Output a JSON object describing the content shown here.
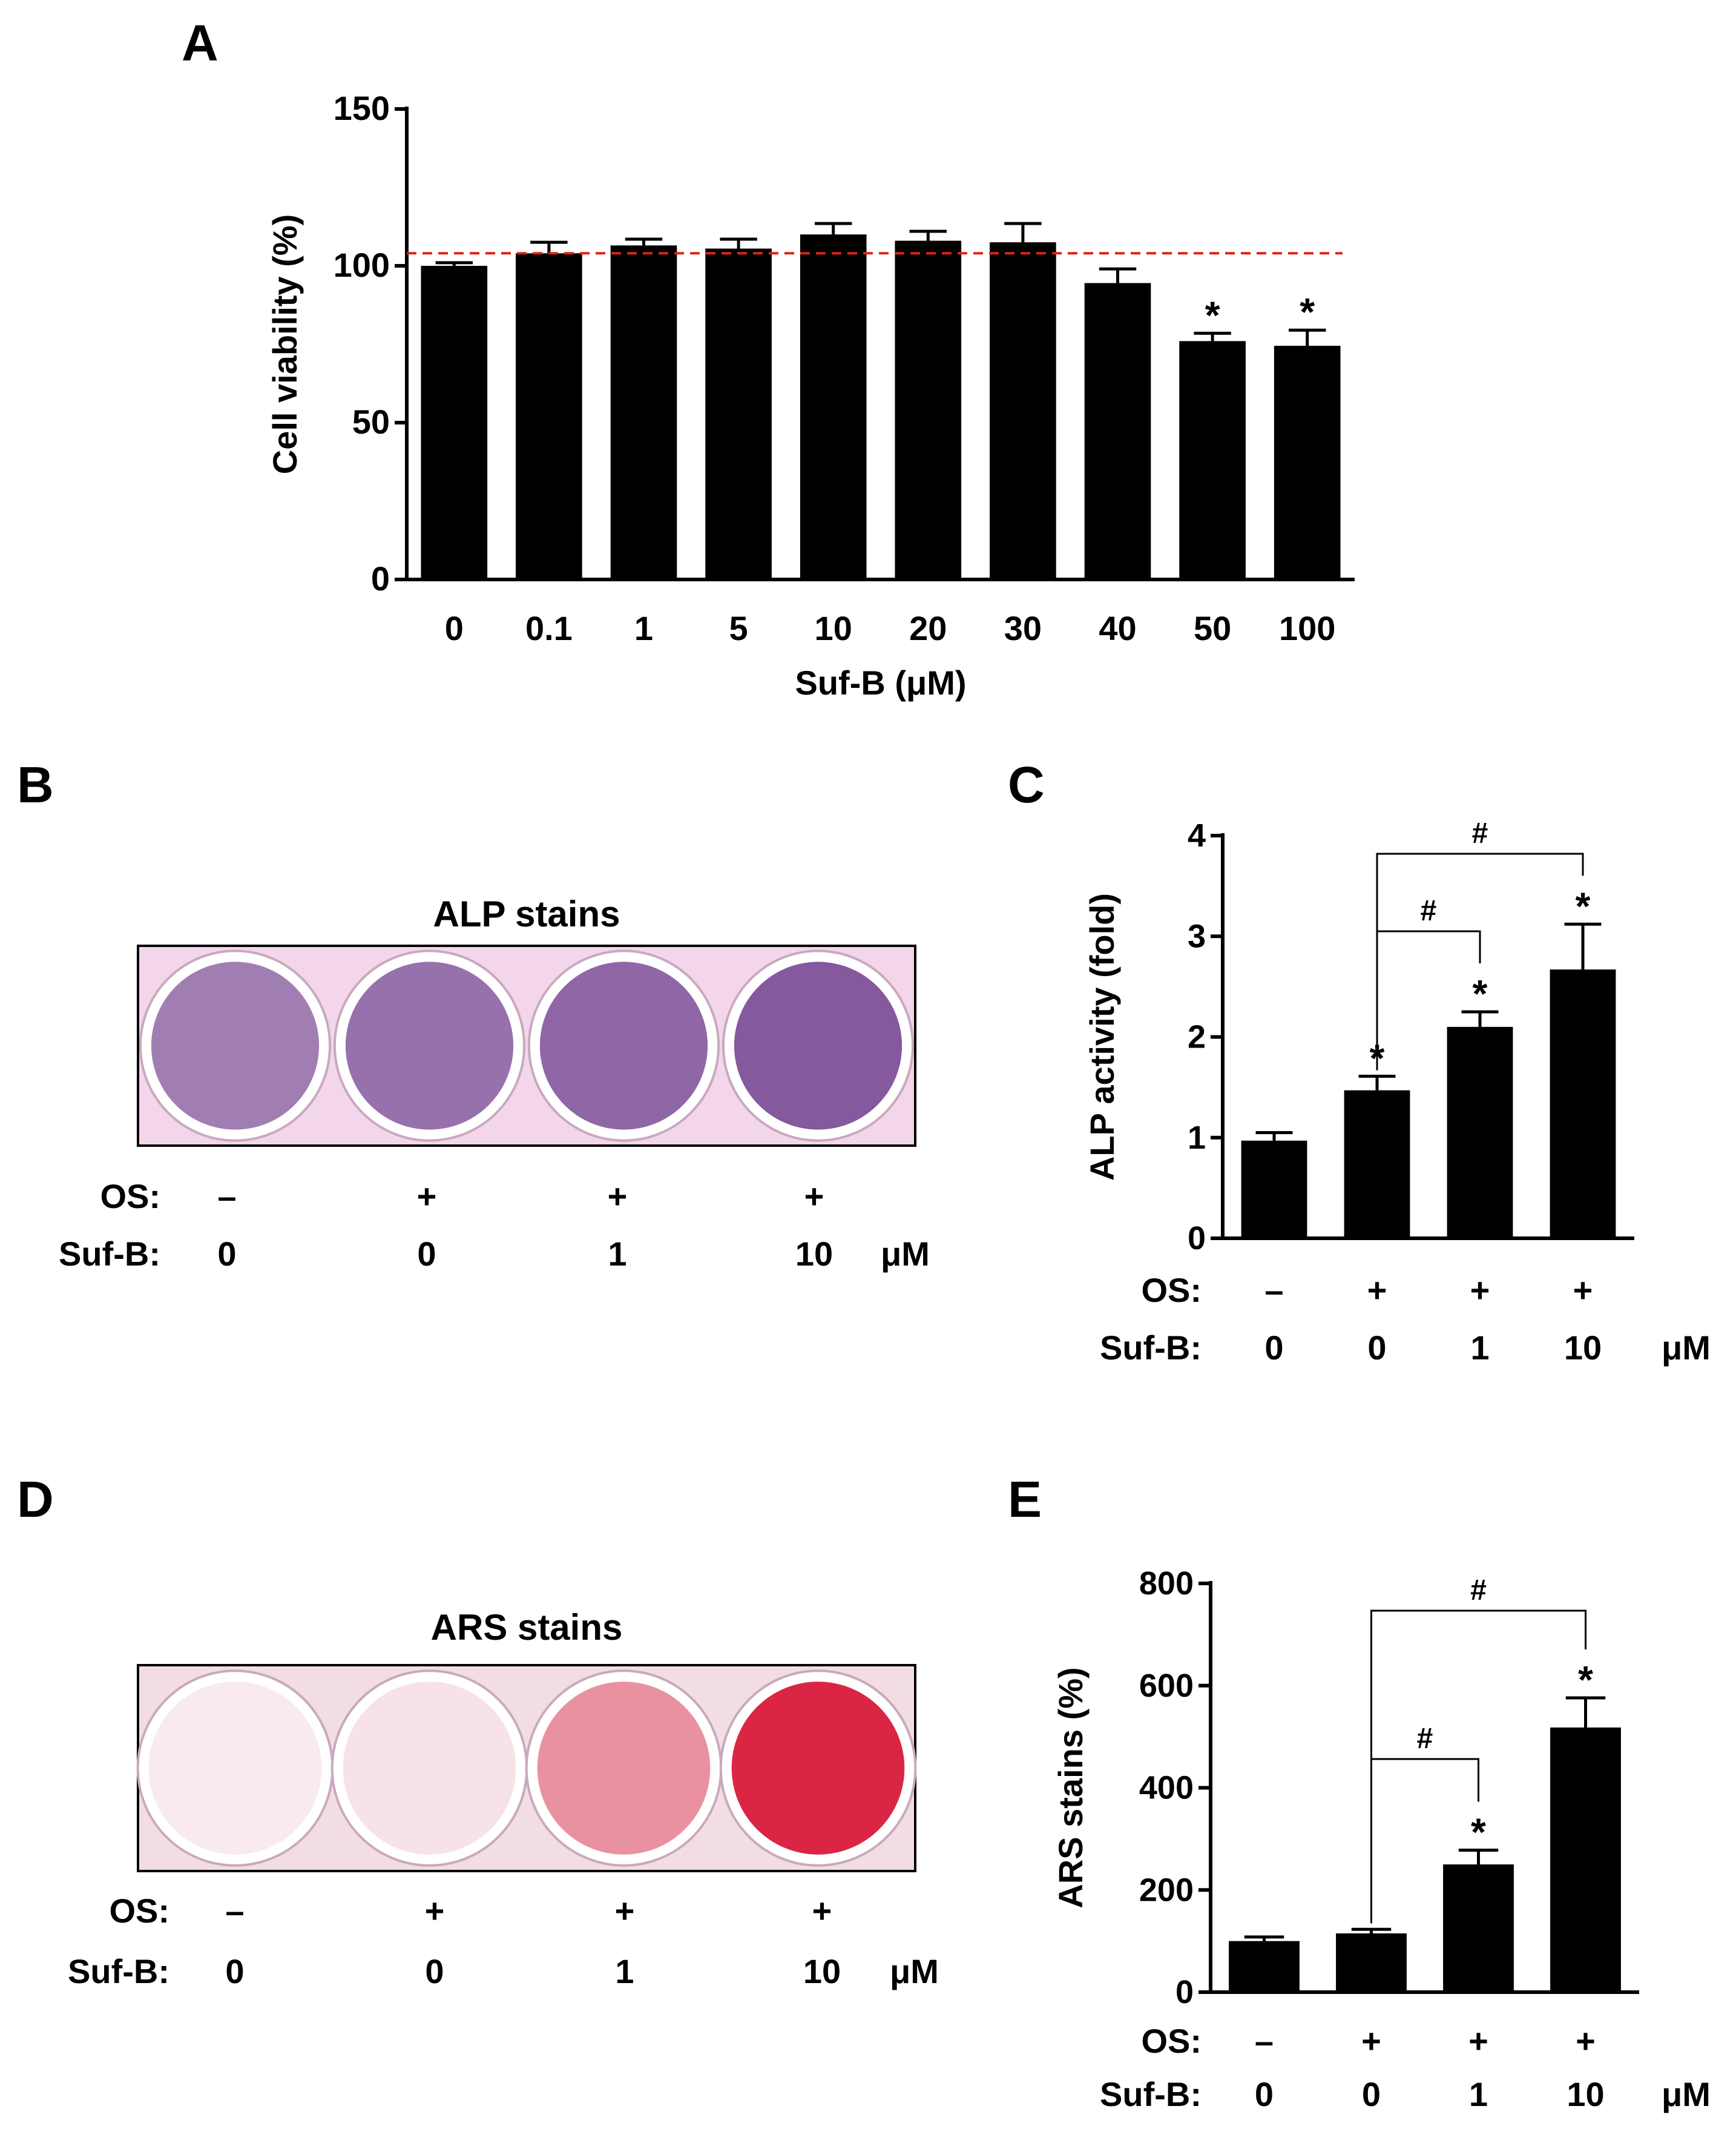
{
  "panels": {
    "a": {
      "letter": "A"
    },
    "b": {
      "letter": "B",
      "title": "ALP stains"
    },
    "c": {
      "letter": "C"
    },
    "d": {
      "letter": "D",
      "title": "ARS stains"
    },
    "e": {
      "letter": "E"
    }
  },
  "treatment_table": {
    "os_label": "OS:",
    "sufb_label": "Suf-B:",
    "os_values": [
      "–",
      "+",
      "+",
      "+"
    ],
    "sufb_values": [
      "0",
      "0",
      "1",
      "10"
    ],
    "unit": "μM"
  },
  "significance": {
    "star": "*",
    "hash": "#"
  },
  "colors": {
    "bar": "#000000",
    "reference_line": "#e0201c",
    "alp_stain": "#7a4c96",
    "ars_stain": "#d81a3a",
    "plate_background": "#f4d6ea",
    "ars_plate_background": "#f2dde4"
  },
  "stain_intensity": {
    "alp": [
      0.7,
      0.78,
      0.84,
      0.92
    ],
    "ars": [
      0.04,
      0.08,
      0.45,
      0.95
    ]
  },
  "chart_data": [
    {
      "panel": "A",
      "type": "bar",
      "categories": [
        "0",
        "0.1",
        "1",
        "5",
        "10",
        "20",
        "30",
        "40",
        "50",
        "100"
      ],
      "values": [
        100,
        104,
        106.5,
        105.5,
        110,
        108,
        107.5,
        94.5,
        76,
        74.5
      ],
      "errors": [
        1,
        3.5,
        2,
        3,
        3.5,
        3,
        6,
        4.5,
        2.5,
        5
      ],
      "significant": [
        false,
        false,
        false,
        false,
        false,
        false,
        false,
        false,
        true,
        true
      ],
      "reference_line": 104,
      "xlabel": "Suf-B (μM)",
      "ylabel": "Cell viability (%)",
      "ylim": [
        0,
        150
      ],
      "yticks": [
        "0",
        "50",
        "100",
        "150"
      ]
    },
    {
      "panel": "C",
      "type": "bar",
      "categories": [
        "1",
        "2",
        "3",
        "4"
      ],
      "values": [
        0.97,
        1.47,
        2.1,
        2.67
      ],
      "errors": [
        0.08,
        0.14,
        0.15,
        0.45
      ],
      "significant": [
        false,
        true,
        true,
        true
      ],
      "comparisons": [
        [
          1,
          2
        ],
        [
          1,
          3
        ]
      ],
      "ylabel": "ALP activity (fold)",
      "ylim": [
        0,
        4
      ],
      "yticks": [
        "0",
        "1",
        "2",
        "3",
        "4"
      ]
    },
    {
      "panel": "E",
      "type": "bar",
      "categories": [
        "1",
        "2",
        "3",
        "4"
      ],
      "values": [
        100,
        115,
        250,
        518
      ],
      "errors": [
        8,
        8,
        28,
        58
      ],
      "significant": [
        false,
        false,
        true,
        true
      ],
      "comparisons": [
        [
          1,
          2
        ],
        [
          1,
          3
        ]
      ],
      "ylabel": "ARS stains (%)",
      "ylim": [
        0,
        800
      ],
      "yticks": [
        "0",
        "200",
        "400",
        "600",
        "800"
      ]
    }
  ]
}
